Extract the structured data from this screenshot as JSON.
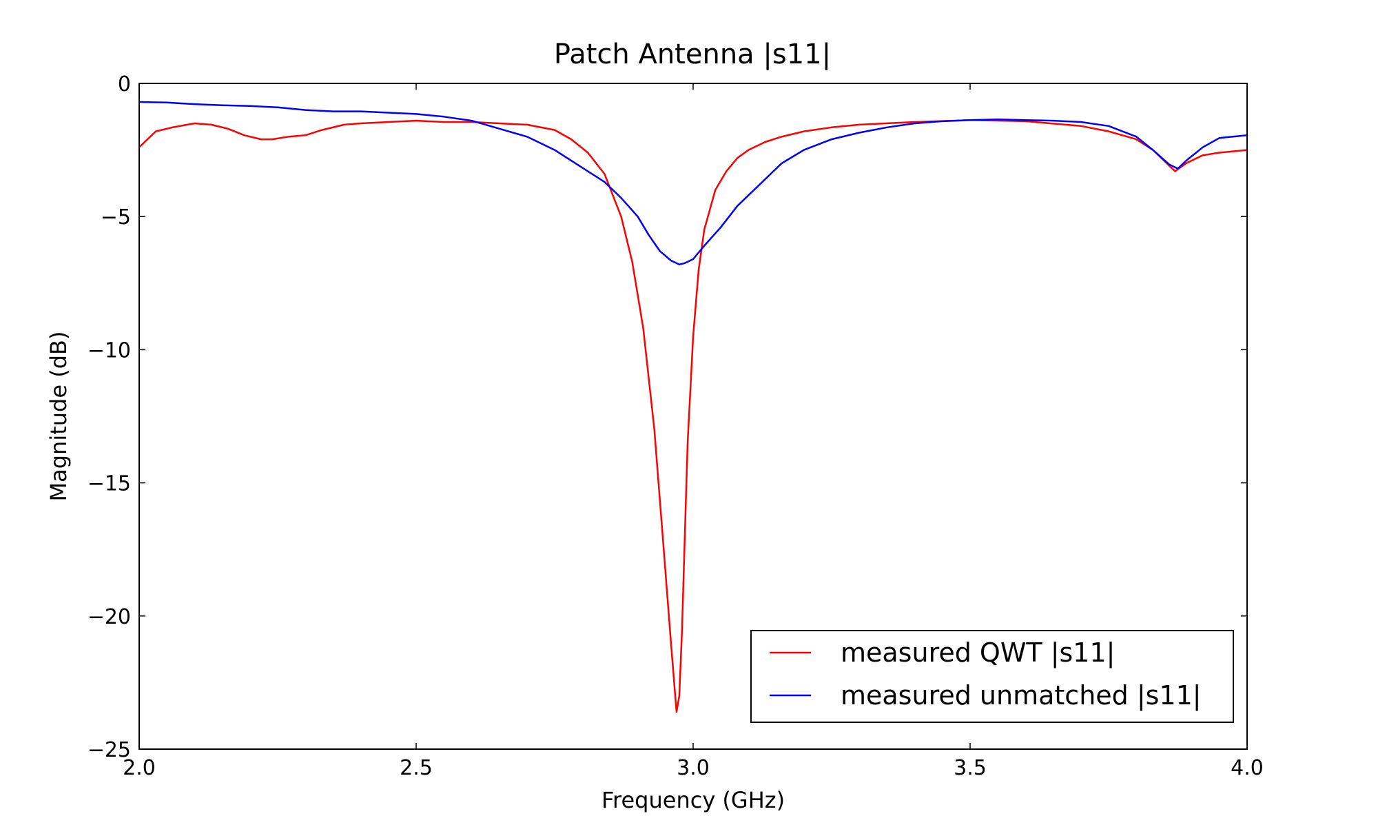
{
  "chart_data": {
    "type": "line",
    "title": "Patch Antenna |s11|",
    "xlabel": "Frequency (GHz)",
    "ylabel": "Magnitude (dB)",
    "xlim": [
      2.0,
      4.0
    ],
    "ylim": [
      -25,
      0
    ],
    "xticks": [
      2.0,
      2.5,
      3.0,
      3.5,
      4.0
    ],
    "xtick_labels": [
      "2.0",
      "2.5",
      "3.0",
      "3.5",
      "4.0"
    ],
    "yticks": [
      0,
      -5,
      -10,
      -15,
      -20,
      -25
    ],
    "ytick_labels": [
      "0",
      "−5",
      "−10",
      "−15",
      "−20",
      "−25"
    ],
    "grid": false,
    "legend_position": "lower-right",
    "series": [
      {
        "name": "measured QWT |s11|",
        "color": "#ff0000",
        "x": [
          2.0,
          2.01,
          2.03,
          2.06,
          2.1,
          2.13,
          2.16,
          2.19,
          2.22,
          2.24,
          2.27,
          2.3,
          2.33,
          2.37,
          2.4,
          2.45,
          2.5,
          2.55,
          2.6,
          2.65,
          2.7,
          2.75,
          2.78,
          2.81,
          2.84,
          2.87,
          2.89,
          2.91,
          2.93,
          2.945,
          2.96,
          2.97,
          2.975,
          2.98,
          2.985,
          2.99,
          3.0,
          3.01,
          3.02,
          3.04,
          3.06,
          3.08,
          3.1,
          3.13,
          3.16,
          3.2,
          3.25,
          3.3,
          3.4,
          3.5,
          3.6,
          3.7,
          3.75,
          3.8,
          3.83,
          3.86,
          3.87,
          3.89,
          3.92,
          3.95,
          4.0
        ],
        "y": [
          -2.4,
          -2.2,
          -1.8,
          -1.65,
          -1.5,
          -1.55,
          -1.7,
          -1.95,
          -2.1,
          -2.1,
          -2.0,
          -1.95,
          -1.75,
          -1.55,
          -1.5,
          -1.45,
          -1.4,
          -1.45,
          -1.45,
          -1.5,
          -1.55,
          -1.75,
          -2.1,
          -2.6,
          -3.4,
          -5.0,
          -6.7,
          -9.2,
          -13.0,
          -17.0,
          -21.0,
          -23.6,
          -23.0,
          -20.5,
          -17.0,
          -13.5,
          -9.5,
          -7.0,
          -5.5,
          -4.0,
          -3.3,
          -2.8,
          -2.5,
          -2.2,
          -2.0,
          -1.8,
          -1.65,
          -1.55,
          -1.45,
          -1.38,
          -1.42,
          -1.6,
          -1.8,
          -2.1,
          -2.5,
          -3.1,
          -3.3,
          -3.0,
          -2.7,
          -2.6,
          -2.5
        ]
      },
      {
        "name": "measured unmatched |s11|",
        "color": "#0000ff",
        "x": [
          2.0,
          2.05,
          2.1,
          2.15,
          2.2,
          2.25,
          2.3,
          2.35,
          2.4,
          2.45,
          2.5,
          2.55,
          2.6,
          2.65,
          2.7,
          2.75,
          2.78,
          2.81,
          2.84,
          2.87,
          2.9,
          2.92,
          2.94,
          2.96,
          2.975,
          2.985,
          3.0,
          3.02,
          3.05,
          3.08,
          3.12,
          3.16,
          3.2,
          3.25,
          3.3,
          3.35,
          3.4,
          3.45,
          3.5,
          3.55,
          3.6,
          3.65,
          3.7,
          3.75,
          3.8,
          3.83,
          3.86,
          3.875,
          3.89,
          3.92,
          3.95,
          4.0
        ],
        "y": [
          -0.7,
          -0.72,
          -0.78,
          -0.82,
          -0.85,
          -0.9,
          -1.0,
          -1.05,
          -1.05,
          -1.1,
          -1.15,
          -1.25,
          -1.4,
          -1.7,
          -2.0,
          -2.5,
          -2.9,
          -3.3,
          -3.7,
          -4.3,
          -5.0,
          -5.7,
          -6.3,
          -6.65,
          -6.8,
          -6.75,
          -6.6,
          -6.1,
          -5.4,
          -4.6,
          -3.8,
          -3.0,
          -2.5,
          -2.1,
          -1.85,
          -1.65,
          -1.5,
          -1.42,
          -1.38,
          -1.35,
          -1.38,
          -1.4,
          -1.45,
          -1.6,
          -2.0,
          -2.5,
          -3.05,
          -3.2,
          -2.9,
          -2.4,
          -2.05,
          -1.95
        ]
      }
    ]
  }
}
